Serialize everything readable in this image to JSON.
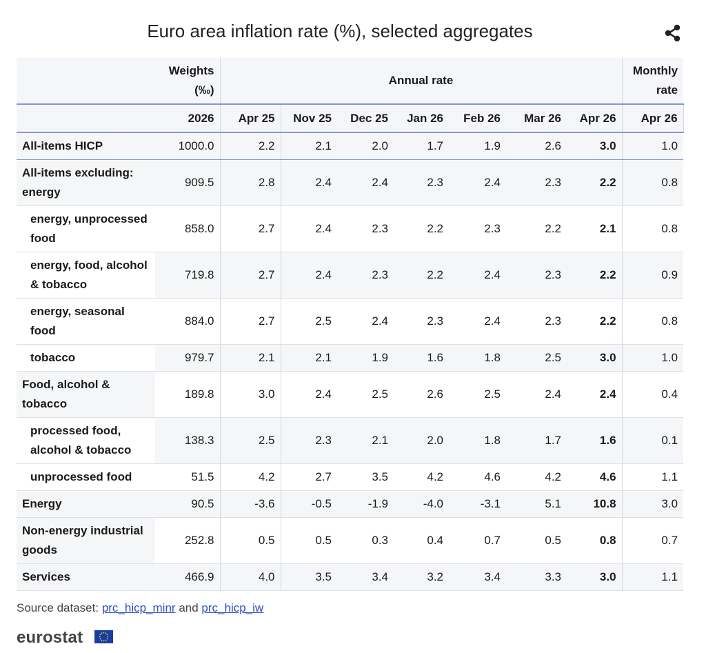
{
  "title": "Euro area inflation rate (%), selected aggregates",
  "share_icon": "share-icon",
  "header": {
    "weights_label": "Weights (‰)",
    "annual_label": "Annual rate",
    "monthly_label": "Monthly rate",
    "columns": [
      "2026",
      "Apr 25",
      "Nov 25",
      "Dec 25",
      "Jan 26",
      "Feb 26",
      "Mar 26",
      "Apr 26",
      "Apr 26"
    ]
  },
  "rows": [
    {
      "label": "All-items HICP",
      "indent": false,
      "values": [
        "1000.0",
        "2.2",
        "2.1",
        "2.0",
        "1.7",
        "1.9",
        "2.6",
        "3.0",
        "1.0"
      ]
    },
    {
      "label": "All-items excluding: energy",
      "indent": false,
      "values": [
        "909.5",
        "2.8",
        "2.4",
        "2.4",
        "2.3",
        "2.4",
        "2.3",
        "2.2",
        "0.8"
      ]
    },
    {
      "label": "energy, unprocessed food",
      "indent": true,
      "values": [
        "858.0",
        "2.7",
        "2.4",
        "2.3",
        "2.2",
        "2.3",
        "2.2",
        "2.1",
        "0.8"
      ]
    },
    {
      "label": "energy, food, alcohol & tobacco",
      "indent": true,
      "values": [
        "719.8",
        "2.7",
        "2.4",
        "2.3",
        "2.2",
        "2.4",
        "2.3",
        "2.2",
        "0.9"
      ]
    },
    {
      "label": "energy, seasonal food",
      "indent": true,
      "values": [
        "884.0",
        "2.7",
        "2.5",
        "2.4",
        "2.3",
        "2.4",
        "2.3",
        "2.2",
        "0.8"
      ]
    },
    {
      "label": "tobacco",
      "indent": true,
      "values": [
        "979.7",
        "2.1",
        "2.1",
        "1.9",
        "1.6",
        "1.8",
        "2.5",
        "3.0",
        "1.0"
      ]
    },
    {
      "label": "Food, alcohol & tobacco",
      "indent": false,
      "values": [
        "189.8",
        "3.0",
        "2.4",
        "2.5",
        "2.6",
        "2.5",
        "2.4",
        "2.4",
        "0.4"
      ]
    },
    {
      "label": "processed food, alcohol & tobacco",
      "indent": true,
      "values": [
        "138.3",
        "2.5",
        "2.3",
        "2.1",
        "2.0",
        "1.8",
        "1.7",
        "1.6",
        "0.1"
      ]
    },
    {
      "label": "unprocessed food",
      "indent": true,
      "values": [
        "51.5",
        "4.2",
        "2.7",
        "3.5",
        "4.2",
        "4.6",
        "4.2",
        "4.6",
        "1.1"
      ]
    },
    {
      "label": "Energy",
      "indent": false,
      "values": [
        "90.5",
        "-3.6",
        "-0.5",
        "-1.9",
        "-4.0",
        "-3.1",
        "5.1",
        "10.8",
        "3.0"
      ]
    },
    {
      "label": "Non-energy industrial goods",
      "indent": false,
      "values": [
        "252.8",
        "0.5",
        "0.5",
        "0.3",
        "0.4",
        "0.7",
        "0.5",
        "0.8",
        "0.7"
      ]
    },
    {
      "label": "Services",
      "indent": false,
      "values": [
        "466.9",
        "4.0",
        "3.5",
        "3.4",
        "3.2",
        "3.4",
        "3.3",
        "3.0",
        "1.1"
      ]
    }
  ],
  "source": {
    "prefix": "Source dataset:",
    "link1": "prc_hicp_minr",
    "conj": "and",
    "link2": "prc_hicp_iw"
  },
  "logo": "eurostat"
}
